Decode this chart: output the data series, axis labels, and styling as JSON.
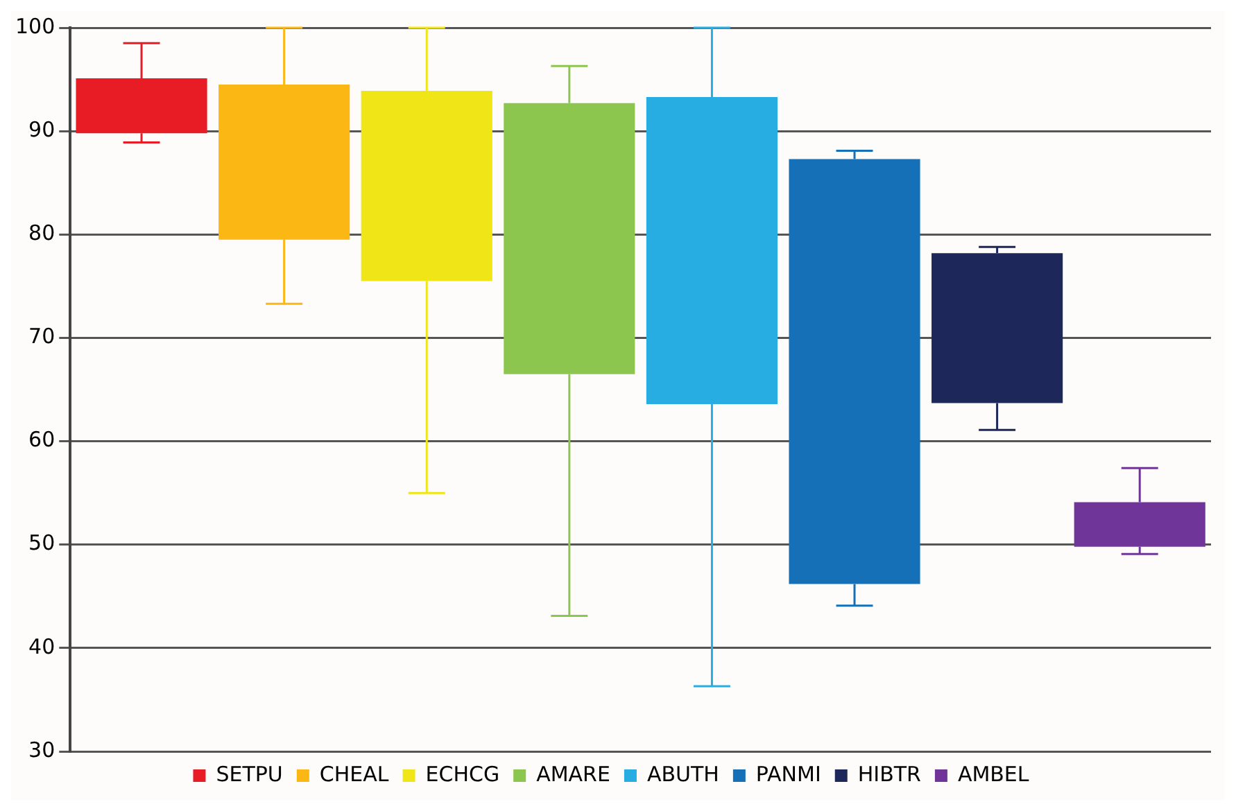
{
  "chart_data": {
    "type": "box",
    "categories": [
      null,
      null,
      null,
      null,
      null,
      null,
      null,
      null
    ],
    "ylim": [
      30,
      100
    ],
    "yticks": [
      30,
      40,
      50,
      60,
      70,
      80,
      90,
      100
    ],
    "grid": "y",
    "legend": "bottom",
    "series": [
      {
        "name": "SETPU",
        "color": "#e81c24",
        "boxes": [
          {
            "low": 88.9,
            "q1": 89.8,
            "q3": 95.1,
            "high": 98.5
          },
          null,
          null,
          null,
          null,
          null,
          null,
          null
        ]
      },
      {
        "name": "CHEAL",
        "color": "#fbb713",
        "boxes": [
          null,
          {
            "low": 73.3,
            "q1": 79.5,
            "q3": 94.5,
            "high": 100
          },
          null,
          null,
          null,
          null,
          null,
          null
        ]
      },
      {
        "name": "ECHCG",
        "color": "#f0e516",
        "boxes": [
          null,
          null,
          {
            "low": 55.0,
            "q1": 75.5,
            "q3": 93.9,
            "high": 100
          },
          null,
          null,
          null,
          null,
          null
        ]
      },
      {
        "name": "AMARE",
        "color": "#8dc64f",
        "boxes": [
          null,
          null,
          null,
          {
            "low": 43.1,
            "q1": 66.5,
            "q3": 92.7,
            "high": 96.3
          },
          null,
          null,
          null,
          null
        ]
      },
      {
        "name": "ABUTH",
        "color": "#28ade3",
        "boxes": [
          null,
          null,
          null,
          null,
          {
            "low": 36.3,
            "q1": 63.6,
            "q3": 93.3,
            "high": 100
          },
          null,
          null,
          null
        ]
      },
      {
        "name": "PANMI",
        "color": "#1570b8",
        "boxes": [
          null,
          null,
          null,
          null,
          null,
          {
            "low": 44.1,
            "q1": 46.2,
            "q3": 87.3,
            "high": 88.1
          },
          null,
          null
        ]
      },
      {
        "name": "HIBTR",
        "color": "#1e275a",
        "boxes": [
          null,
          null,
          null,
          null,
          null,
          null,
          {
            "low": 61.1,
            "q1": 63.7,
            "q3": 78.2,
            "high": 78.8
          },
          null
        ]
      },
      {
        "name": "AMBEL",
        "color": "#6f3598",
        "boxes": [
          null,
          null,
          null,
          null,
          null,
          null,
          null,
          {
            "low": 49.1,
            "q1": 49.8,
            "q3": 54.1,
            "high": 57.4
          }
        ]
      }
    ]
  }
}
